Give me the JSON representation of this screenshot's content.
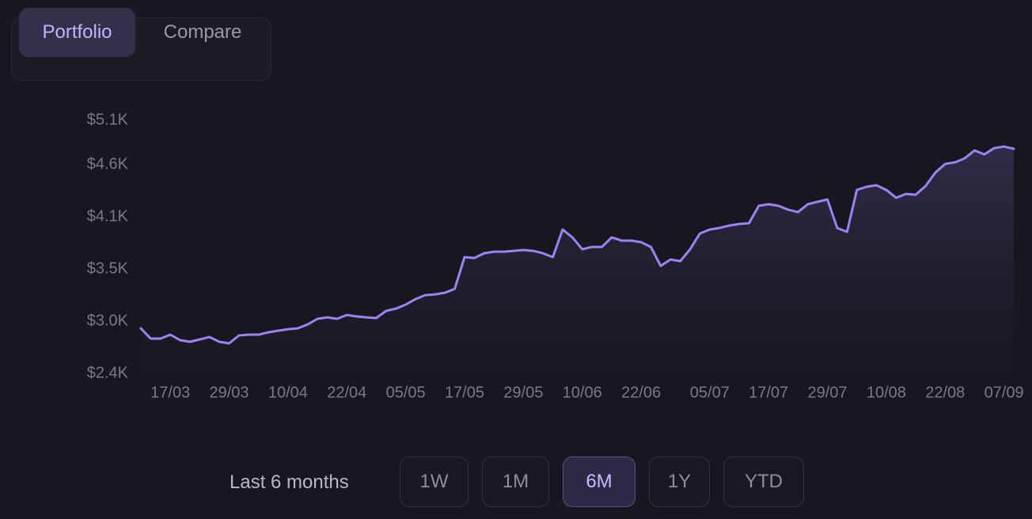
{
  "tabs": [
    "Portfolio",
    "Compare"
  ],
  "active_tab_index": 0,
  "range_label": "Last 6 months",
  "ranges": [
    "1W",
    "1M",
    "6M",
    "1Y",
    "YTD"
  ],
  "active_range_index": 2,
  "chart_data": {
    "type": "line",
    "color": "#9d83f2",
    "categories": [
      null,
      null,
      null,
      "17/03",
      null,
      null,
      null,
      null,
      null,
      "29/03",
      null,
      null,
      null,
      null,
      null,
      "10/04",
      null,
      null,
      null,
      null,
      null,
      "22/04",
      null,
      null,
      null,
      null,
      null,
      "05/05",
      null,
      null,
      null,
      null,
      null,
      "17/05",
      null,
      null,
      null,
      null,
      null,
      "29/05",
      null,
      null,
      null,
      null,
      null,
      "10/06",
      null,
      null,
      null,
      null,
      null,
      "22/06",
      null,
      null,
      null,
      null,
      null,
      null,
      "05/07",
      null,
      null,
      null,
      null,
      null,
      "17/07",
      null,
      null,
      null,
      null,
      null,
      "29/07",
      null,
      null,
      null,
      null,
      null,
      "10/08",
      null,
      null,
      null,
      null,
      null,
      "22/08",
      null,
      null,
      null,
      null,
      null,
      "07/09",
      null
    ],
    "values": [
      2915,
      2807,
      2807,
      2848,
      2790,
      2773,
      2798,
      2823,
      2773,
      2757,
      2840,
      2848,
      2848,
      2873,
      2890,
      2906,
      2915,
      2956,
      3015,
      3031,
      3015,
      3056,
      3040,
      3031,
      3023,
      3098,
      3123,
      3165,
      3223,
      3265,
      3273,
      3290,
      3331,
      3665,
      3656,
      3706,
      3723,
      3723,
      3731,
      3740,
      3731,
      3706,
      3665,
      3956,
      3873,
      3748,
      3773,
      3773,
      3873,
      3839,
      3839,
      3823,
      3773,
      3573,
      3640,
      3623,
      3748,
      3914,
      3956,
      3973,
      3998,
      4014,
      4023,
      4206,
      4223,
      4206,
      4164,
      4139,
      4223,
      4248,
      4273,
      3973,
      3931,
      4373,
      4406,
      4423,
      4373,
      4290,
      4331,
      4323,
      4414,
      4556,
      4647,
      4664,
      4706,
      4789,
      4748,
      4814,
      4830,
      4806
    ],
    "ylim": [
      2440,
      5107
    ],
    "yticks": [
      {
        "value": 2440,
        "label": "$2.4K"
      },
      {
        "value": 2990,
        "label": "$3.0K"
      },
      {
        "value": 3540,
        "label": "$3.5K"
      },
      {
        "value": 4090,
        "label": "$4.1K"
      },
      {
        "value": 4640,
        "label": "$4.6K"
      },
      {
        "value": 5107,
        "label": "$5.1K"
      }
    ],
    "grid": false
  }
}
